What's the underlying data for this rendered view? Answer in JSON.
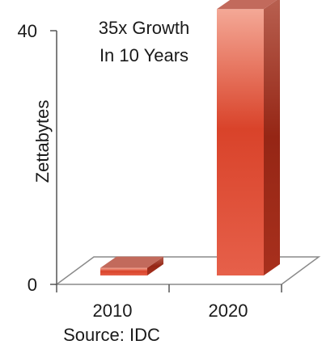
{
  "chart_data": {
    "type": "bar",
    "title": [
      "35x Growth",
      "In 10 Years"
    ],
    "categories": [
      "2010",
      "2020"
    ],
    "values": [
      1.2,
      42
    ],
    "ylabel": "Zettabytes",
    "xlabel": "",
    "ylim": [
      0,
      40
    ],
    "yticks": [
      "0",
      "40"
    ],
    "source": "Source: IDC",
    "grid": false,
    "colors": {
      "bar_front_mid": "#d9432a",
      "bar_front_light": "#f0a08c",
      "bar_side": "#9e2a1b",
      "bar_top": "#c26a5c",
      "floor": "#ffffff",
      "floor_stroke": "#8a8a8a",
      "axis": "#555555"
    }
  }
}
